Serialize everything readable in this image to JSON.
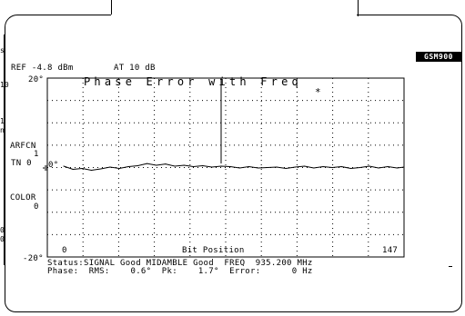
{
  "header": {
    "ref_label": "REF -4.8 dBm",
    "att_label": "AT 10 dB",
    "band_badge": "GSM900"
  },
  "chart_panel": {
    "y_top": "20°",
    "y_bottom": "-20°",
    "title": "Phase Error with Freq",
    "trace_label": "0°",
    "marker": "*",
    "x_start": "0",
    "x_label": "Bit Position",
    "x_end": "147"
  },
  "side_labels": {
    "arfcn_label": "ARFCN",
    "arfcn_value": "1",
    "tn_label": "TN 0",
    "color_label": "COLOR",
    "color_value": "0"
  },
  "status": {
    "line1": "Status:SIGNAL Good MIDAMBLE Good  FREQ  935.200 MHz",
    "line2": "Phase:  RMS:    0.6°  Pk:    1.7°  Error:      0 Hz"
  },
  "left_edge_fragments": [
    "s",
    "10",
    "1",
    "n",
    "0",
    "0"
  ],
  "chart_data": {
    "type": "line",
    "title": "Phase Error with Freq",
    "xlabel": "Bit Position",
    "ylabel": "",
    "xlim": [
      0,
      147
    ],
    "ylim": [
      -20,
      20
    ],
    "x_tick_labels": [
      "0",
      "147"
    ],
    "y_tick_labels": [
      "20°",
      "-20°"
    ],
    "grid": true,
    "series": [
      {
        "x": [
          0,
          4,
          8,
          12,
          16,
          20,
          24,
          28,
          32,
          36,
          40,
          44,
          48,
          52,
          56,
          60,
          64,
          68,
          72,
          76,
          80,
          84,
          88,
          92,
          96,
          100,
          104,
          108,
          112,
          116,
          120,
          124,
          128,
          132,
          136,
          140,
          144,
          147
        ],
        "values": [
          0.3,
          -0.4,
          -0.2,
          -0.6,
          -0.3,
          0.1,
          -0.2,
          0.2,
          0.4,
          0.9,
          0.5,
          0.8,
          0.3,
          0.5,
          0.2,
          0.4,
          0.1,
          0.3,
          0.2,
          -0.1,
          0.2,
          -0.1,
          0.0,
          0.1,
          -0.2,
          0.1,
          0.3,
          -0.1,
          0.2,
          0.0,
          0.2,
          -0.2,
          0.0,
          0.3,
          -0.1,
          0.2,
          -0.1,
          0.1
        ]
      }
    ]
  },
  "colors": {
    "background": "#ffffff",
    "foreground": "#000000"
  }
}
